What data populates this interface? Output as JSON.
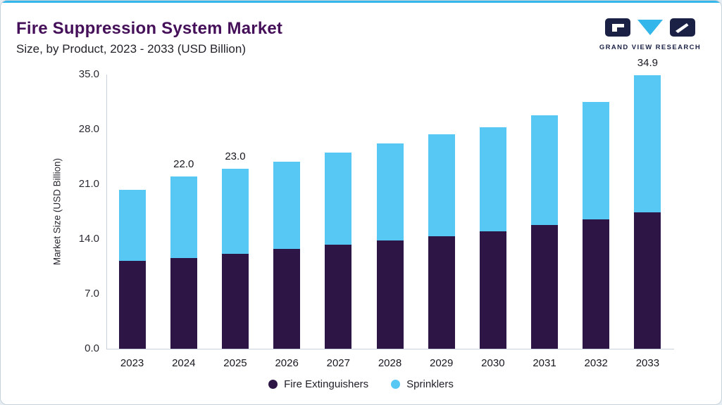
{
  "header": {
    "title": "Fire Suppression System Market",
    "subtitle": "Size, by Product, 2023 - 2033 (USD Billion)",
    "logo_text": "GRAND VIEW RESEARCH"
  },
  "colors": {
    "accent_cyan": "#33b6e9",
    "title_purple": "#451059",
    "logo_navy": "#1b2145",
    "fire_extinguishers": "#2d1545",
    "sprinklers": "#57c8f3"
  },
  "chart_data": {
    "type": "bar",
    "stacked": true,
    "title": "Fire Suppression System Market",
    "subtitle": "Size, by Product, 2023 - 2033 (USD Billion)",
    "xlabel": "",
    "ylabel": "Market Size (USD Billion)",
    "ylim": [
      0,
      35
    ],
    "yticks": [
      0,
      7,
      14,
      21,
      28,
      35
    ],
    "ytick_labels": [
      "0.0",
      "7.0",
      "14.0",
      "21.0",
      "28.0",
      "35.0"
    ],
    "categories": [
      "2023",
      "2024",
      "2025",
      "2026",
      "2027",
      "2028",
      "2029",
      "2030",
      "2031",
      "2032",
      "2033"
    ],
    "series": [
      {
        "name": "Fire Extinguishers",
        "color": "#2d1545",
        "values": [
          11.2,
          11.6,
          12.1,
          12.7,
          13.3,
          13.8,
          14.4,
          15.0,
          15.8,
          16.5,
          17.4
        ]
      },
      {
        "name": "Sprinklers",
        "color": "#57c8f3",
        "values": [
          9.1,
          10.4,
          10.9,
          11.2,
          11.7,
          12.4,
          13.0,
          13.3,
          14.0,
          15.0,
          17.5
        ]
      }
    ],
    "totals": [
      20.3,
      22.0,
      23.0,
      23.9,
      25.0,
      26.2,
      27.4,
      28.3,
      29.8,
      31.5,
      34.9
    ],
    "bar_labels": [
      "",
      "22.0",
      "23.0",
      "",
      "",
      "",
      "",
      "",
      "",
      "",
      "34.9"
    ],
    "legend_position": "bottom",
    "grid": false
  }
}
